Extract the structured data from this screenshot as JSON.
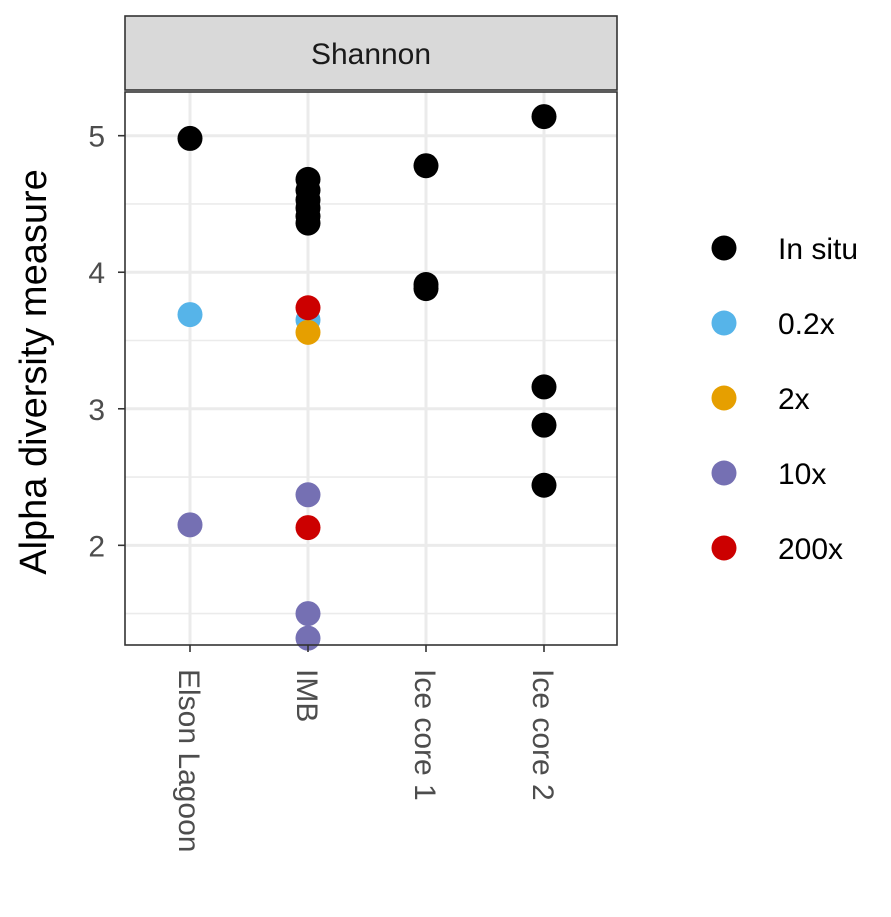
{
  "chart_data": {
    "type": "scatter",
    "facet_label": "Shannon",
    "ylabel": "Alpha diversity measure",
    "xlabel": "",
    "categories": [
      "Elson Lagoon",
      "IMB",
      "Ice core 1",
      "Ice core 2"
    ],
    "ylim": [
      1.27,
      5.32
    ],
    "yticks": [
      2,
      3,
      4,
      5
    ],
    "grid": true,
    "legend_position": "right",
    "series": [
      {
        "name": "In situ",
        "color": "#000000",
        "points": [
          {
            "x": "Elson Lagoon",
            "y": 4.98
          },
          {
            "x": "IMB",
            "y": 4.68
          },
          {
            "x": "IMB",
            "y": 4.6
          },
          {
            "x": "IMB",
            "y": 4.53
          },
          {
            "x": "IMB",
            "y": 4.47
          },
          {
            "x": "IMB",
            "y": 4.41
          },
          {
            "x": "IMB",
            "y": 4.36
          },
          {
            "x": "Ice core 1",
            "y": 4.78
          },
          {
            "x": "Ice core 1",
            "y": 3.91
          },
          {
            "x": "Ice core 1",
            "y": 3.88
          },
          {
            "x": "Ice core 2",
            "y": 5.14
          },
          {
            "x": "Ice core 2",
            "y": 3.16
          },
          {
            "x": "Ice core 2",
            "y": 2.88
          },
          {
            "x": "Ice core 2",
            "y": 2.44
          }
        ]
      },
      {
        "name": "0.2x",
        "color": "#56B4E9",
        "points": [
          {
            "x": "Elson Lagoon",
            "y": 3.69
          },
          {
            "x": "IMB",
            "y": 3.65
          }
        ]
      },
      {
        "name": "2x",
        "color": "#E69F00",
        "points": [
          {
            "x": "IMB",
            "y": 3.56
          }
        ]
      },
      {
        "name": "10x",
        "color": "#7570B3",
        "points": [
          {
            "x": "Elson Lagoon",
            "y": 2.15
          },
          {
            "x": "IMB",
            "y": 2.37
          },
          {
            "x": "IMB",
            "y": 1.5
          },
          {
            "x": "IMB",
            "y": 1.32
          }
        ]
      },
      {
        "name": "200x",
        "color": "#CC0000",
        "points": [
          {
            "x": "IMB",
            "y": 3.74
          },
          {
            "x": "IMB",
            "y": 2.13
          }
        ]
      }
    ]
  },
  "legend": {
    "items": [
      {
        "label": "In situ",
        "color": "#000000"
      },
      {
        "label": "0.2x",
        "color": "#56B4E9"
      },
      {
        "label": "2x",
        "color": "#E69F00"
      },
      {
        "label": "10x",
        "color": "#7570B3"
      },
      {
        "label": "200x",
        "color": "#CC0000"
      }
    ]
  }
}
